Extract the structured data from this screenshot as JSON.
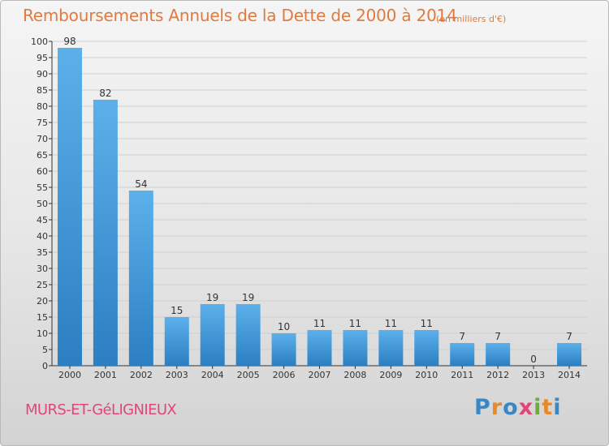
{
  "header": {
    "title": "Remboursements Annuels de la Dette de 2000 à 2014",
    "subtitle": "(en milliers d'€)"
  },
  "footer": {
    "commune": "MURS-ET-GéLIGNIEUX",
    "brand_letters": [
      "P",
      "r",
      "o",
      "x",
      "i",
      "t",
      "i"
    ],
    "brand_colors": [
      "#3a87c8",
      "#e8892a",
      "#3a87c8",
      "#e0457b",
      "#6cae3a",
      "#e8892a",
      "#3a87c8"
    ]
  },
  "colors": {
    "bar_light": "#5cb0ea",
    "bar_dark": "#2b7fc2",
    "gridline": "#cfcfcf",
    "axis": "#333333"
  },
  "chart_data": {
    "type": "bar",
    "title": "Remboursements Annuels de la Dette de 2000 à 2014",
    "subtitle": "(en milliers d'€)",
    "categories": [
      "2000",
      "2001",
      "2002",
      "2003",
      "2004",
      "2005",
      "2006",
      "2007",
      "2008",
      "2009",
      "2010",
      "2011",
      "2012",
      "2013",
      "2014"
    ],
    "values": [
      98,
      82,
      54,
      15,
      19,
      19,
      10,
      11,
      11,
      11,
      11,
      7,
      7,
      0,
      7
    ],
    "y_ticks": [
      0,
      5,
      10,
      15,
      20,
      25,
      30,
      35,
      40,
      45,
      50,
      55,
      60,
      65,
      70,
      75,
      80,
      85,
      90,
      95,
      100
    ],
    "ylim": [
      0,
      100
    ],
    "grid": true,
    "legend": "none"
  }
}
